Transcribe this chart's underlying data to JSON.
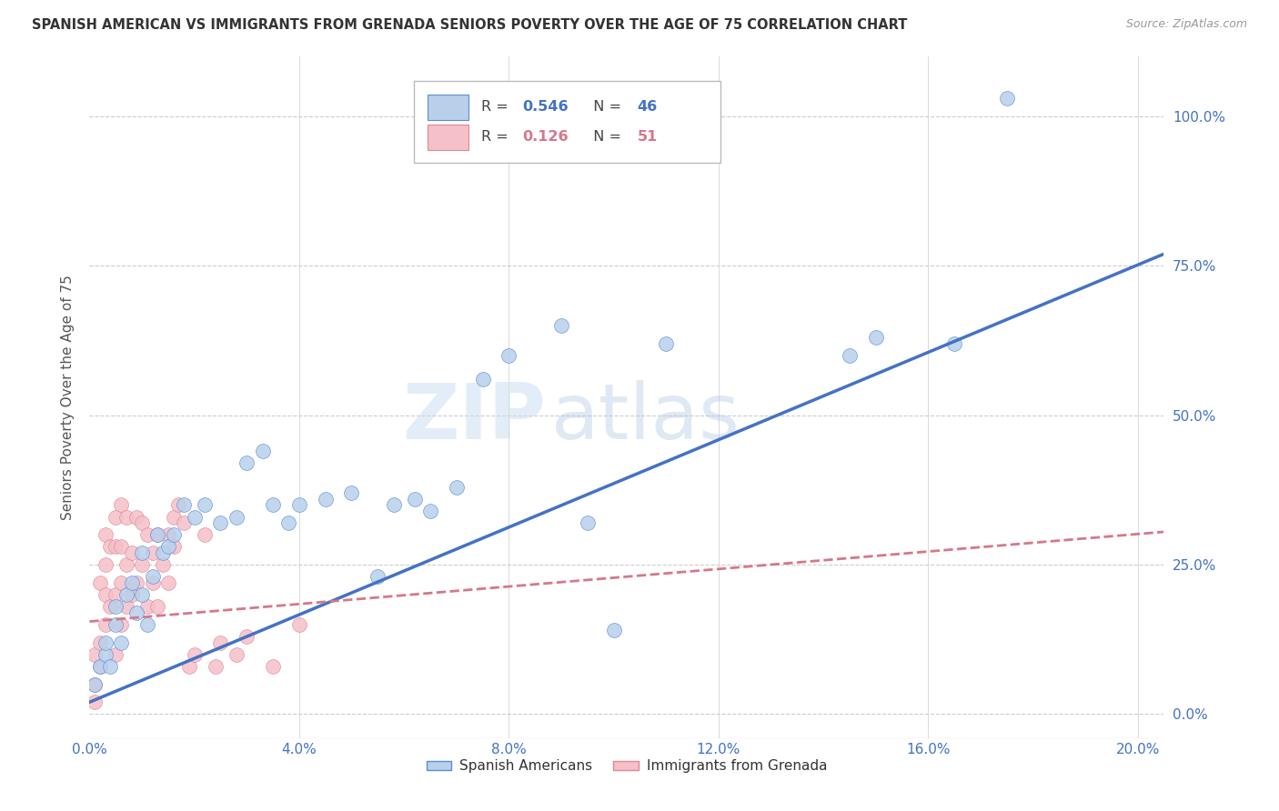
{
  "title": "SPANISH AMERICAN VS IMMIGRANTS FROM GRENADA SENIORS POVERTY OVER THE AGE OF 75 CORRELATION CHART",
  "source": "Source: ZipAtlas.com",
  "ylabel": "Seniors Poverty Over the Age of 75",
  "watermark_zip": "ZIP",
  "watermark_atlas": "atlas",
  "blue_label": "Spanish Americans",
  "pink_label": "Immigrants from Grenada",
  "blue_R": 0.546,
  "blue_N": 46,
  "pink_R": 0.126,
  "pink_N": 51,
  "xlim": [
    0.0,
    0.205
  ],
  "ylim": [
    -0.04,
    1.1
  ],
  "ytick_vals": [
    0.0,
    0.25,
    0.5,
    0.75,
    1.0
  ],
  "ytick_labels": [
    "0.0%",
    "25.0%",
    "50.0%",
    "75.0%",
    "100.0%"
  ],
  "xtick_vals": [
    0.0,
    0.04,
    0.08,
    0.12,
    0.16,
    0.2
  ],
  "xtick_labels": [
    "0.0%",
    "4.0%",
    "8.0%",
    "12.0%",
    "16.0%",
    "20.0%"
  ],
  "blue_color": "#b8d0ea",
  "blue_edge": "#5b8dd9",
  "blue_line": "#4472c4",
  "pink_color": "#f5c0c8",
  "pink_edge": "#e08898",
  "pink_line": "#d4788a",
  "grid_color": "#cccccc",
  "axis_color": "#4472c4",
  "title_color": "#333333",
  "blue_trend_x0": 0.0,
  "blue_trend_y0": 0.02,
  "blue_trend_x1": 0.205,
  "blue_trend_y1": 0.77,
  "pink_trend_x0": 0.0,
  "pink_trend_y0": 0.155,
  "pink_trend_x1": 0.205,
  "pink_trend_y1": 0.305,
  "blue_x": [
    0.001,
    0.002,
    0.003,
    0.003,
    0.004,
    0.005,
    0.005,
    0.006,
    0.007,
    0.008,
    0.009,
    0.01,
    0.01,
    0.011,
    0.012,
    0.013,
    0.014,
    0.015,
    0.016,
    0.018,
    0.02,
    0.022,
    0.025,
    0.028,
    0.03,
    0.033,
    0.035,
    0.038,
    0.04,
    0.045,
    0.05,
    0.055,
    0.058,
    0.062,
    0.065,
    0.07,
    0.075,
    0.08,
    0.09,
    0.095,
    0.1,
    0.11,
    0.145,
    0.15,
    0.165,
    0.175
  ],
  "blue_y": [
    0.05,
    0.08,
    0.1,
    0.12,
    0.08,
    0.15,
    0.18,
    0.12,
    0.2,
    0.22,
    0.17,
    0.2,
    0.27,
    0.15,
    0.23,
    0.3,
    0.27,
    0.28,
    0.3,
    0.35,
    0.33,
    0.35,
    0.32,
    0.33,
    0.42,
    0.44,
    0.35,
    0.32,
    0.35,
    0.36,
    0.37,
    0.23,
    0.35,
    0.36,
    0.34,
    0.38,
    0.56,
    0.6,
    0.65,
    0.32,
    0.14,
    0.62,
    0.6,
    0.63,
    0.62,
    1.03
  ],
  "pink_x": [
    0.001,
    0.001,
    0.001,
    0.002,
    0.002,
    0.002,
    0.003,
    0.003,
    0.003,
    0.003,
    0.004,
    0.004,
    0.005,
    0.005,
    0.005,
    0.005,
    0.006,
    0.006,
    0.006,
    0.006,
    0.007,
    0.007,
    0.007,
    0.008,
    0.008,
    0.009,
    0.009,
    0.01,
    0.01,
    0.011,
    0.011,
    0.012,
    0.012,
    0.013,
    0.013,
    0.014,
    0.015,
    0.015,
    0.016,
    0.016,
    0.017,
    0.018,
    0.019,
    0.02,
    0.022,
    0.024,
    0.025,
    0.028,
    0.03,
    0.035,
    0.04
  ],
  "pink_y": [
    0.02,
    0.05,
    0.1,
    0.08,
    0.12,
    0.22,
    0.15,
    0.2,
    0.25,
    0.3,
    0.18,
    0.28,
    0.1,
    0.2,
    0.28,
    0.33,
    0.15,
    0.22,
    0.28,
    0.35,
    0.18,
    0.25,
    0.33,
    0.2,
    0.27,
    0.22,
    0.33,
    0.25,
    0.32,
    0.18,
    0.3,
    0.22,
    0.27,
    0.3,
    0.18,
    0.25,
    0.22,
    0.3,
    0.28,
    0.33,
    0.35,
    0.32,
    0.08,
    0.1,
    0.3,
    0.08,
    0.12,
    0.1,
    0.13,
    0.08,
    0.15
  ]
}
